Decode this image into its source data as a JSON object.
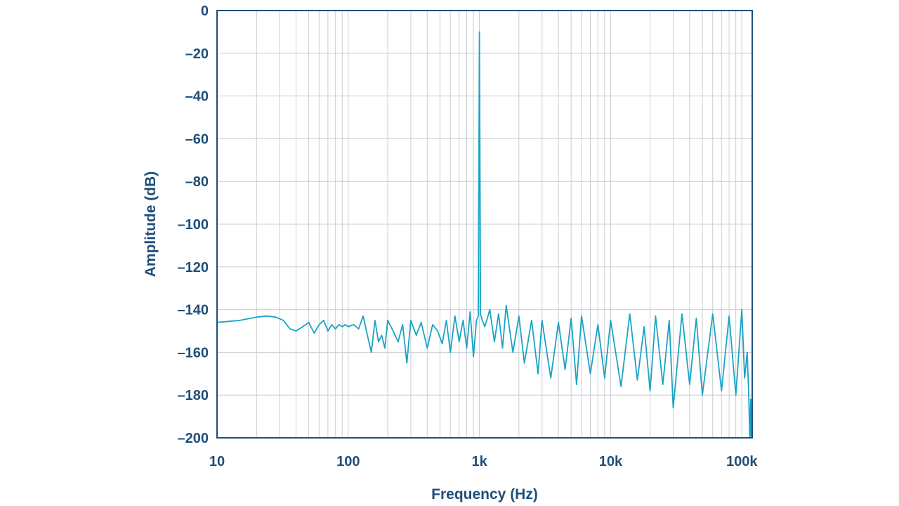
{
  "chart_data": {
    "type": "line",
    "xlabel": "Frequency (Hz)",
    "ylabel": "Amplitude (dB)",
    "x_scale": "log",
    "xlim": [
      10,
      120000
    ],
    "ylim": [
      -200,
      0
    ],
    "grid": true,
    "x_ticks": [
      {
        "value": 10,
        "label": "10"
      },
      {
        "value": 100,
        "label": "100"
      },
      {
        "value": 1000,
        "label": "1k"
      },
      {
        "value": 10000,
        "label": "10k"
      },
      {
        "value": 100000,
        "label": "100k"
      }
    ],
    "y_ticks": [
      {
        "value": 0,
        "label": "0"
      },
      {
        "value": -20,
        "label": "–20"
      },
      {
        "value": -40,
        "label": "–40"
      },
      {
        "value": -60,
        "label": "–60"
      },
      {
        "value": -80,
        "label": "–80"
      },
      {
        "value": -100,
        "label": "–100"
      },
      {
        "value": -120,
        "label": "–120"
      },
      {
        "value": -140,
        "label": "–140"
      },
      {
        "value": -160,
        "label": "–160"
      },
      {
        "value": -180,
        "label": "–180"
      },
      {
        "value": -200,
        "label": "–200"
      }
    ],
    "series_color": "#1ba3c6",
    "series": [
      {
        "x": [
          10,
          15,
          20,
          24,
          28,
          32,
          36,
          40,
          45,
          50,
          55,
          60,
          65,
          70,
          75,
          80,
          85,
          90,
          95,
          100,
          110,
          120,
          130,
          140,
          150,
          160,
          170,
          180,
          190,
          200,
          220,
          240,
          260,
          280,
          300,
          330,
          360,
          400,
          440,
          480,
          520,
          560,
          600,
          650,
          700,
          750,
          800,
          850,
          900,
          950,
          980,
          1000,
          1020,
          1050,
          1100,
          1200,
          1300,
          1400,
          1500,
          1600,
          1800,
          2000,
          2200,
          2500,
          2800,
          3000,
          3500,
          4000,
          4500,
          5000,
          5500,
          6000,
          7000,
          8000,
          9000,
          10000,
          12000,
          14000,
          16000,
          18000,
          20000,
          22000,
          25000,
          28000,
          30000,
          35000,
          40000,
          45000,
          50000,
          60000,
          70000,
          80000,
          90000,
          100000,
          105000,
          110000,
          113000,
          115000,
          117000,
          118000
        ],
        "y": [
          -146,
          -145,
          -143.5,
          -143,
          -143.5,
          -145,
          -149,
          -150,
          -148,
          -146,
          -151,
          -147,
          -145,
          -150,
          -147,
          -149,
          -147,
          -148,
          -147,
          -148,
          -147,
          -149,
          -143,
          -152,
          -160,
          -145,
          -155,
          -152,
          -158,
          -145,
          -150,
          -155,
          -147,
          -165,
          -145,
          -152,
          -146,
          -158,
          -147,
          -150,
          -156,
          -145,
          -160,
          -143,
          -155,
          -145,
          -158,
          -141,
          -162,
          -145,
          -143,
          -10,
          -142,
          -145,
          -148,
          -140,
          -155,
          -142,
          -158,
          -138,
          -160,
          -143,
          -165,
          -145,
          -170,
          -145,
          -172,
          -146,
          -168,
          -144,
          -175,
          -143,
          -170,
          -147,
          -172,
          -145,
          -176,
          -142,
          -173,
          -148,
          -178,
          -143,
          -175,
          -145,
          -186,
          -142,
          -175,
          -144,
          -180,
          -142,
          -178,
          -143,
          -180,
          -140,
          -172,
          -160,
          -180,
          -200,
          -182,
          -200
        ]
      }
    ]
  }
}
